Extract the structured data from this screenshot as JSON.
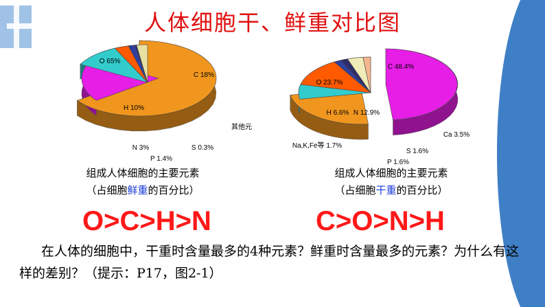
{
  "title": "人体细胞干、鲜重对比图",
  "colors": {
    "O": "#f0961e",
    "C": "#e61ee6",
    "H": "#33cccc",
    "N": "#ff5a00",
    "P": "#2f3f9f",
    "S": "#2d2d6a",
    "Ca": "#f0ecb8",
    "other": "#e8e0a0",
    "NaKFe": "#f3b58f",
    "title": "#e01010",
    "order": "#ff1818"
  },
  "chart_data": [
    {
      "type": "pie",
      "caption_line1": "组成人体细胞的主要元素",
      "caption_line2_prefix": "（占细胞",
      "caption_line2_highlight": "鲜重",
      "caption_line2_suffix": "的百分比）",
      "order_text": "O>C>H>N",
      "slices": [
        {
          "label": "O 65%",
          "value": 65,
          "key": "O"
        },
        {
          "label": "C 18%",
          "value": 18,
          "key": "C"
        },
        {
          "label": "H 10%",
          "value": 10,
          "key": "H"
        },
        {
          "label": "N 3%",
          "value": 3,
          "key": "N"
        },
        {
          "label": "P 1.4%",
          "value": 1.4,
          "key": "P"
        },
        {
          "label": "S 0.3%",
          "value": 0.3,
          "key": "S"
        },
        {
          "label": "其他元",
          "value": 2.3,
          "key": "other"
        }
      ]
    },
    {
      "type": "pie",
      "caption_line1": "组成人体细胞的主要元素",
      "caption_line2_prefix": "（占细胞",
      "caption_line2_highlight": "干重",
      "caption_line2_suffix": "的百分比）",
      "order_text": "C>O>N>H",
      "slices": [
        {
          "label": "C 48.4%",
          "value": 48.4,
          "key": "C"
        },
        {
          "label": "O 23.7%",
          "value": 23.7,
          "key": "O"
        },
        {
          "label": "H 6.6%",
          "value": 6.6,
          "key": "H"
        },
        {
          "label": "N 12.9%",
          "value": 12.9,
          "key": "N"
        },
        {
          "label": "P 1.6%",
          "value": 1.6,
          "key": "P"
        },
        {
          "label": "S 1.6%",
          "value": 1.6,
          "key": "S"
        },
        {
          "label": "Ca 3.5%",
          "value": 3.5,
          "key": "Ca"
        },
        {
          "label": "Na,K,Fe等 1.7%",
          "value": 1.7,
          "key": "NaKFe"
        }
      ]
    }
  ],
  "question": "在人体的细胞中，干重时含量最多的4种元素？鲜重时含量最多的元素？为什么有这样的差别？（提示：P17，图2-1）"
}
